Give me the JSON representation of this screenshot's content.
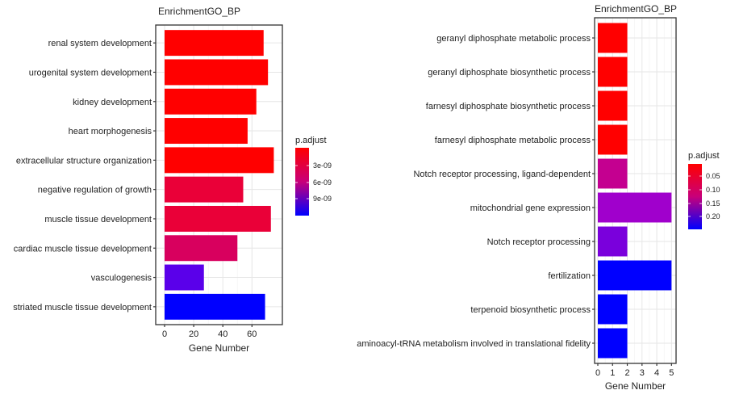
{
  "chart_data": [
    {
      "type": "bar",
      "orientation": "horizontal",
      "title": "EnrichmentGO_BP",
      "xlabel": "Gene Number",
      "ylabel": "",
      "xlim": [
        0,
        77
      ],
      "xticks": [
        0,
        20,
        40,
        60
      ],
      "grid": true,
      "categories": [
        "renal system development",
        "urogenital system development",
        "kidney development",
        "heart morphogenesis",
        "extracellular structure organization",
        "negative regulation of growth",
        "muscle tissue development",
        "cardiac muscle tissue development",
        "vasculogenesis",
        "striated muscle tissue development"
      ],
      "values": [
        68,
        71,
        63,
        57,
        75,
        54,
        73,
        50,
        27,
        69
      ],
      "colors": [
        "#ff0000",
        "#ff0000",
        "#ff0000",
        "#ff0000",
        "#ff0000",
        "#ea0038",
        "#ea0038",
        "#d8005e",
        "#5a00ea",
        "#0000ff"
      ],
      "legend": {
        "title": "p.adjust",
        "labels": [
          "3e-09",
          "6e-09",
          "9e-09"
        ],
        "position": "right",
        "gradient": [
          "#ff0000",
          "#0000ff"
        ]
      }
    },
    {
      "type": "bar",
      "orientation": "horizontal",
      "title": "EnrichmentGO_BP",
      "xlabel": "Gene Number",
      "ylabel": "",
      "xlim": [
        0,
        5.2
      ],
      "xticks": [
        0,
        1,
        2,
        3,
        4,
        5
      ],
      "grid": true,
      "categories": [
        "geranyl diphosphate metabolic process",
        "geranyl diphosphate biosynthetic process",
        "farnesyl diphosphate biosynthetic process",
        "farnesyl diphosphate metabolic process",
        "Notch receptor processing, ligand-dependent",
        "mitochondrial gene expression",
        "Notch receptor processing",
        "fertilization",
        "terpenoid biosynthetic process",
        "aminoacyl-tRNA metabolism involved in translational fidelity"
      ],
      "values": [
        2,
        2,
        2,
        2,
        2,
        5,
        2,
        5,
        2,
        2
      ],
      "colors": [
        "#ff0000",
        "#ff0000",
        "#ff0000",
        "#ff0000",
        "#c40090",
        "#a000cc",
        "#7a00dc",
        "#0000ff",
        "#0000ff",
        "#0000ff"
      ],
      "legend": {
        "title": "p.adjust",
        "labels": [
          "0.05",
          "0.10",
          "0.15",
          "0.20"
        ],
        "position": "right",
        "gradient": [
          "#ff0000",
          "#0000ff"
        ]
      }
    }
  ]
}
